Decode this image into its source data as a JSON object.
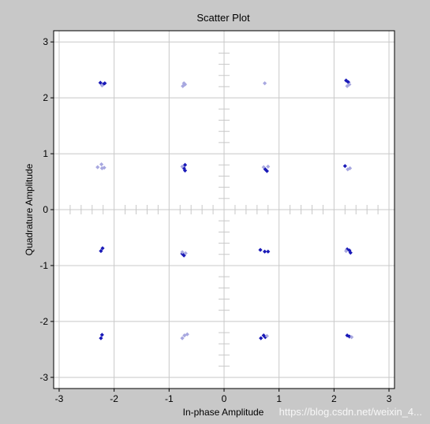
{
  "chart_data": {
    "type": "scatter",
    "title": "Scatter Plot",
    "xlabel": "In-phase Amplitude",
    "ylabel": "Quadrature Amplitude",
    "xlim": [
      -3.1,
      3.1
    ],
    "ylim": [
      -3.2,
      3.2
    ],
    "xticks": [
      "-3",
      "-2",
      "-1",
      "0",
      "1",
      "2",
      "3"
    ],
    "yticks": [
      "-3",
      "-2",
      "-1",
      "0",
      "1",
      "2",
      "3"
    ],
    "grid": true,
    "colors": {
      "dark": "#1a1ab8",
      "light": "#a8a8e0",
      "grid": "#c8c8c8",
      "axis": "#000000"
    },
    "points": [
      {
        "x": -2.25,
        "y": 2.27,
        "c": "dark"
      },
      {
        "x": -2.2,
        "y": 2.24,
        "c": "dark"
      },
      {
        "x": -2.17,
        "y": 2.26,
        "c": "dark"
      },
      {
        "x": -2.22,
        "y": 2.22,
        "c": "light"
      },
      {
        "x": -0.75,
        "y": 2.21,
        "c": "light"
      },
      {
        "x": -0.73,
        "y": 2.26,
        "c": "light"
      },
      {
        "x": -0.71,
        "y": 2.24,
        "c": "light"
      },
      {
        "x": 0.74,
        "y": 2.26,
        "c": "light"
      },
      {
        "x": 2.22,
        "y": 2.31,
        "c": "dark"
      },
      {
        "x": 2.26,
        "y": 2.28,
        "c": "dark"
      },
      {
        "x": 2.24,
        "y": 2.21,
        "c": "light"
      },
      {
        "x": 2.28,
        "y": 2.24,
        "c": "light"
      },
      {
        "x": -2.3,
        "y": 0.76,
        "c": "light"
      },
      {
        "x": -2.23,
        "y": 0.81,
        "c": "light"
      },
      {
        "x": -2.22,
        "y": 0.74,
        "c": "light"
      },
      {
        "x": -2.18,
        "y": 0.75,
        "c": "light"
      },
      {
        "x": -0.71,
        "y": 0.8,
        "c": "dark"
      },
      {
        "x": -0.73,
        "y": 0.74,
        "c": "dark"
      },
      {
        "x": -0.71,
        "y": 0.7,
        "c": "dark"
      },
      {
        "x": -0.76,
        "y": 0.77,
        "c": "light"
      },
      {
        "x": 0.72,
        "y": 0.76,
        "c": "light"
      },
      {
        "x": 0.75,
        "y": 0.72,
        "c": "dark"
      },
      {
        "x": 0.78,
        "y": 0.69,
        "c": "dark"
      },
      {
        "x": 0.8,
        "y": 0.77,
        "c": "light"
      },
      {
        "x": 2.2,
        "y": 0.78,
        "c": "dark"
      },
      {
        "x": 2.25,
        "y": 0.72,
        "c": "light"
      },
      {
        "x": 2.29,
        "y": 0.74,
        "c": "light"
      },
      {
        "x": -2.24,
        "y": -0.74,
        "c": "dark"
      },
      {
        "x": -2.21,
        "y": -0.69,
        "c": "dark"
      },
      {
        "x": -0.76,
        "y": -0.79,
        "c": "dark"
      },
      {
        "x": -0.73,
        "y": -0.82,
        "c": "dark"
      },
      {
        "x": -0.7,
        "y": -0.78,
        "c": "light"
      },
      {
        "x": -0.76,
        "y": -0.76,
        "c": "light"
      },
      {
        "x": 0.66,
        "y": -0.72,
        "c": "dark"
      },
      {
        "x": 0.74,
        "y": -0.75,
        "c": "dark"
      },
      {
        "x": 0.8,
        "y": -0.75,
        "c": "dark"
      },
      {
        "x": 2.24,
        "y": -0.71,
        "c": "dark"
      },
      {
        "x": 2.28,
        "y": -0.73,
        "c": "dark"
      },
      {
        "x": 2.3,
        "y": -0.77,
        "c": "dark"
      },
      {
        "x": 2.22,
        "y": -0.74,
        "c": "light"
      },
      {
        "x": -2.22,
        "y": -2.24,
        "c": "dark"
      },
      {
        "x": -2.24,
        "y": -2.3,
        "c": "dark"
      },
      {
        "x": -0.76,
        "y": -2.3,
        "c": "light"
      },
      {
        "x": -0.72,
        "y": -2.25,
        "c": "light"
      },
      {
        "x": -0.67,
        "y": -2.23,
        "c": "light"
      },
      {
        "x": 0.67,
        "y": -2.3,
        "c": "dark"
      },
      {
        "x": 0.72,
        "y": -2.25,
        "c": "dark"
      },
      {
        "x": 0.75,
        "y": -2.28,
        "c": "dark"
      },
      {
        "x": 0.78,
        "y": -2.26,
        "c": "light"
      },
      {
        "x": 2.24,
        "y": -2.25,
        "c": "dark"
      },
      {
        "x": 2.28,
        "y": -2.27,
        "c": "dark"
      },
      {
        "x": 2.32,
        "y": -2.28,
        "c": "light"
      }
    ]
  },
  "watermark": "https://blog.csdn.net/weixin_4..."
}
